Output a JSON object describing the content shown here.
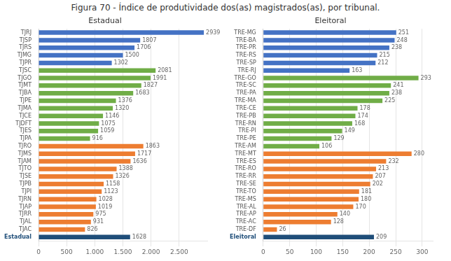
{
  "title": "Figura 70 - Índice de produtividade dos(as) magistrados(as), por tribunal.",
  "chart_data": [
    {
      "type": "bar",
      "orientation": "horizontal",
      "title": "Estadual",
      "categories": [
        "TJRJ",
        "TJSP",
        "TJRS",
        "TJMG",
        "TJPR",
        "TJSC",
        "TJGO",
        "TJMT",
        "TJBA",
        "TJPE",
        "TJMA",
        "TJCE",
        "TJDFT",
        "TJES",
        "TJPA",
        "TJRO",
        "TJMS",
        "TJAM",
        "TJTO",
        "TJSE",
        "TJPB",
        "TJPI",
        "TJRN",
        "TJAP",
        "TJRR",
        "TJAL",
        "TJAC",
        "Estadual"
      ],
      "values": [
        2939,
        1807,
        1706,
        1500,
        1302,
        2081,
        1991,
        1827,
        1683,
        1376,
        1320,
        1146,
        1075,
        1059,
        916,
        1863,
        1717,
        1636,
        1388,
        1326,
        1158,
        1123,
        1028,
        1019,
        975,
        931,
        826,
        1628
      ],
      "colors": [
        "#4472c4",
        "#4472c4",
        "#4472c4",
        "#4472c4",
        "#4472c4",
        "#70ad47",
        "#70ad47",
        "#70ad47",
        "#70ad47",
        "#70ad47",
        "#70ad47",
        "#70ad47",
        "#70ad47",
        "#70ad47",
        "#70ad47",
        "#ed7d31",
        "#ed7d31",
        "#ed7d31",
        "#ed7d31",
        "#ed7d31",
        "#ed7d31",
        "#ed7d31",
        "#ed7d31",
        "#ed7d31",
        "#ed7d31",
        "#ed7d31",
        "#ed7d31",
        "#1f4e79"
      ],
      "xlim": [
        0,
        3000
      ],
      "xticks": [
        0,
        500,
        {
          "value": 1000,
          "label": "1.000"
        },
        {
          "value": 1500,
          "label": "1.500"
        },
        {
          "value": 2000,
          "label": "2.000"
        },
        {
          "value": 2500,
          "label": "2.500"
        }
      ],
      "grid": true,
      "data_labels": true
    },
    {
      "type": "bar",
      "orientation": "horizontal",
      "title": "Eleitoral",
      "categories": [
        "TRE-MG",
        "TRE-BA",
        "TRE-PR",
        "TRE-RS",
        "TRE-SP",
        "TRE-RJ",
        "TRE-GO",
        "TRE-SC",
        "TRE-PA",
        "TRE-MA",
        "TRE-CE",
        "TRE-PB",
        "TRE-RN",
        "TRE-PI",
        "TRE-PE",
        "TRE-AM",
        "TRE-MT",
        "TRE-ES",
        "TRE-RO",
        "TRE-RR",
        "TRE-SE",
        "TRE-TO",
        "TRE-MS",
        "TRE-AL",
        "TRE-AP",
        "TRE-AC",
        "TRE-DF",
        "Eleitoral"
      ],
      "values": [
        251,
        248,
        238,
        215,
        212,
        163,
        293,
        241,
        238,
        225,
        178,
        174,
        168,
        149,
        129,
        106,
        280,
        232,
        213,
        207,
        202,
        181,
        180,
        170,
        140,
        128,
        26,
        209
      ],
      "colors": [
        "#4472c4",
        "#4472c4",
        "#4472c4",
        "#4472c4",
        "#4472c4",
        "#4472c4",
        "#70ad47",
        "#70ad47",
        "#70ad47",
        "#70ad47",
        "#70ad47",
        "#70ad47",
        "#70ad47",
        "#70ad47",
        "#70ad47",
        "#70ad47",
        "#ed7d31",
        "#ed7d31",
        "#ed7d31",
        "#ed7d31",
        "#ed7d31",
        "#ed7d31",
        "#ed7d31",
        "#ed7d31",
        "#ed7d31",
        "#ed7d31",
        "#ed7d31",
        "#1f4e79"
      ],
      "xlim": [
        0,
        320
      ],
      "xticks": [
        0,
        50,
        100,
        150,
        200,
        250,
        300
      ],
      "grid": true,
      "data_labels": true
    }
  ]
}
